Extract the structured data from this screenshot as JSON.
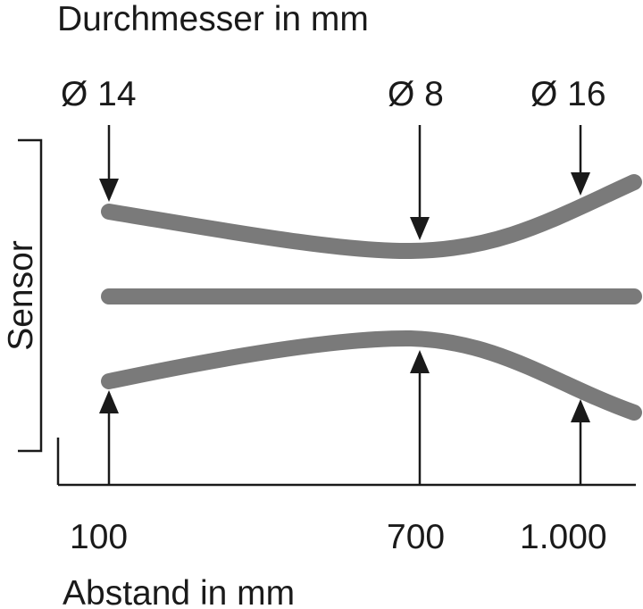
{
  "header": {
    "title": "Durchmesser in mm"
  },
  "diameters": [
    "Ø 14",
    "Ø 8",
    "Ø 16"
  ],
  "sensor_label": "Sensor",
  "distances": [
    "100",
    "700",
    "1.000"
  ],
  "x_axis_label": "Abstand in mm"
}
